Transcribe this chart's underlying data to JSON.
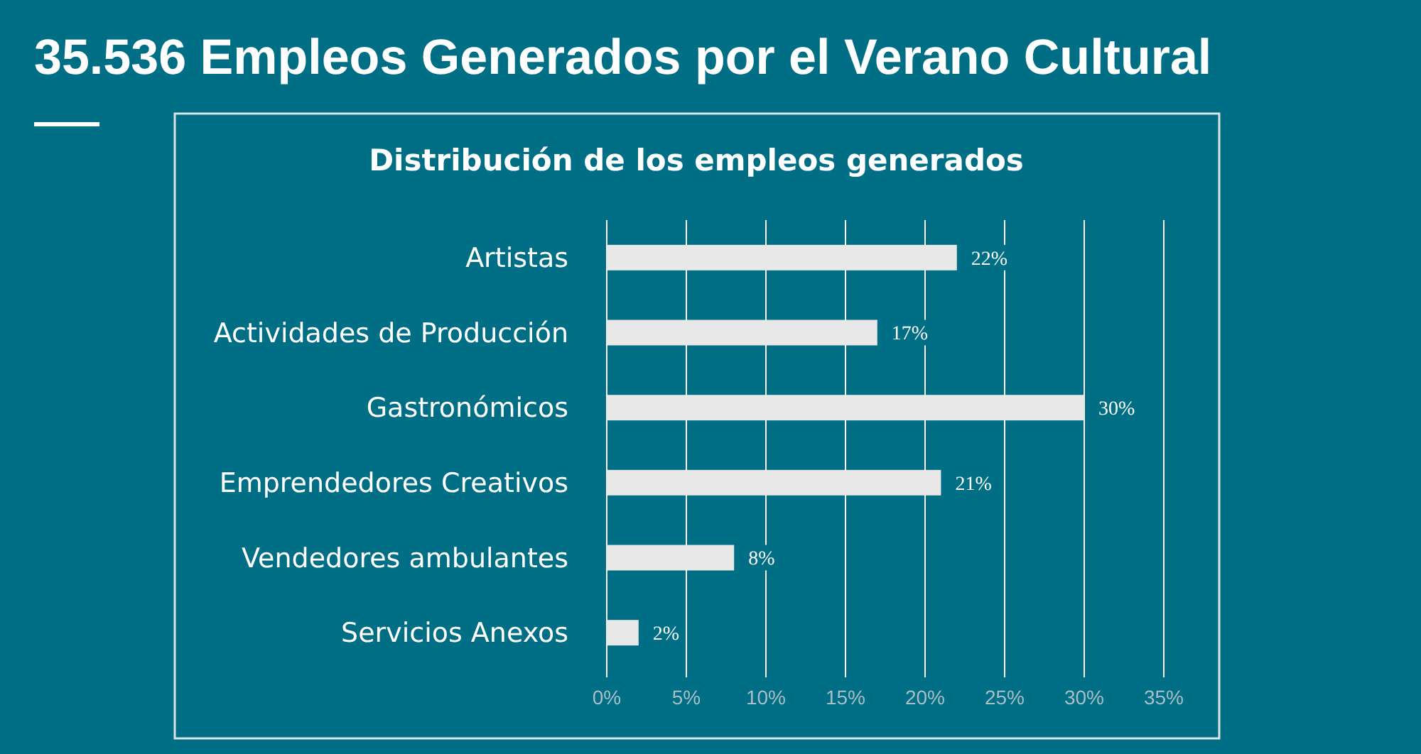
{
  "chart_data": {
    "type": "bar",
    "orientation": "horizontal",
    "title": "35.536 Empleos Generados por el Verano Cultural",
    "subtitle": "Distribución de los empleos generados",
    "categories": [
      "Artistas",
      "Actividades de Producción",
      "Gastronómicos",
      "Emprendedores Creativos",
      "Vendedores ambulantes",
      "Servicios Anexos"
    ],
    "values": [
      22,
      17,
      30,
      21,
      8,
      2
    ],
    "value_labels": [
      "22%",
      "17%",
      "30%",
      "21%",
      "8%",
      "2%"
    ],
    "color": "#e8e8e8",
    "xlim": [
      0,
      35
    ],
    "xticks": [
      {
        "value": 0,
        "label": "0%"
      },
      {
        "value": 5,
        "label": "5%"
      },
      {
        "value": 10,
        "label": "10%"
      },
      {
        "value": 15,
        "label": "15%"
      },
      {
        "value": 20,
        "label": "20%"
      },
      {
        "value": 25,
        "label": "25%"
      },
      {
        "value": 30,
        "label": "30%"
      },
      {
        "value": 35,
        "label": "35%"
      }
    ],
    "grid": "x"
  }
}
